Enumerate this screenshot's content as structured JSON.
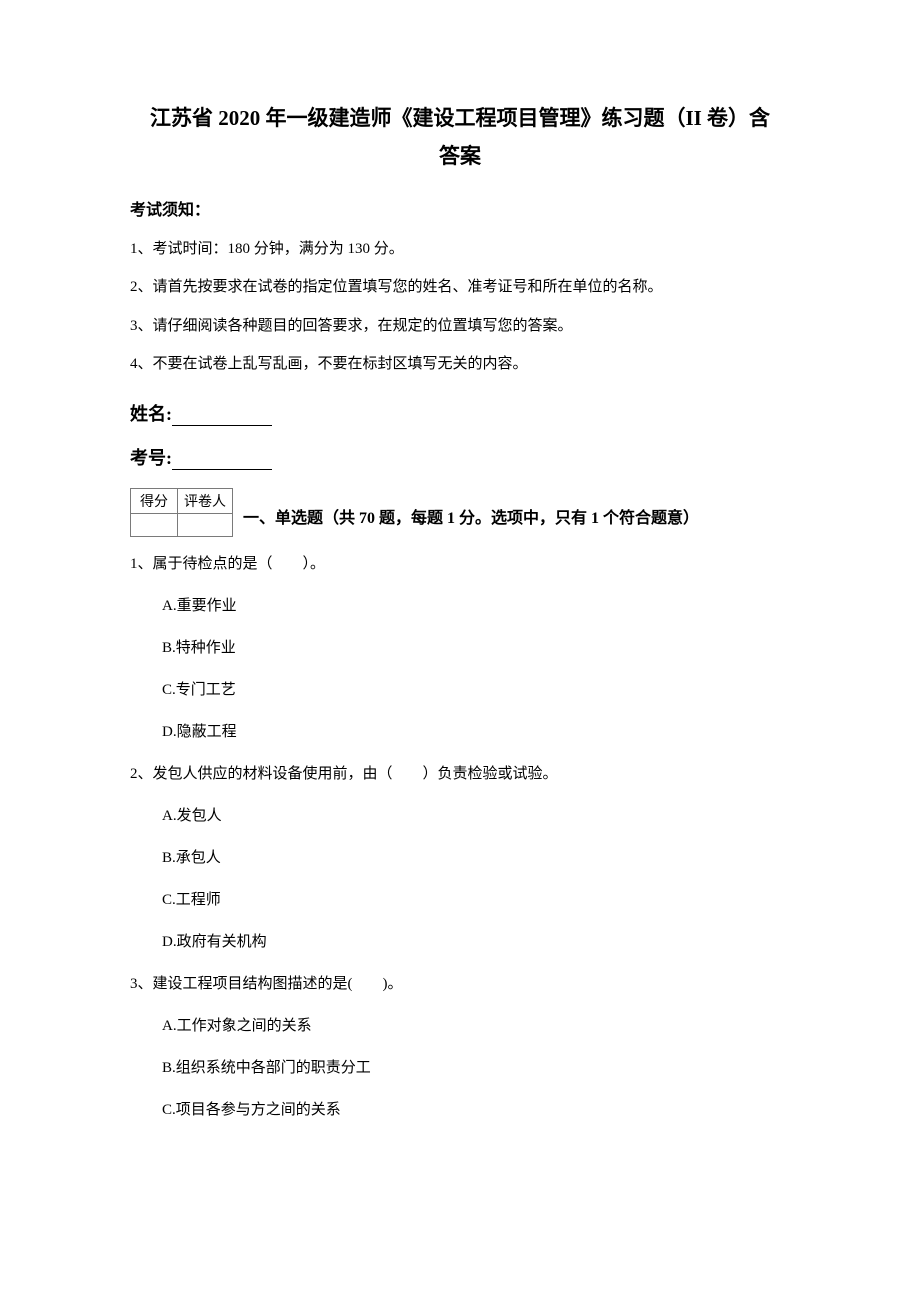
{
  "title_line1": "江苏省 2020 年一级建造师《建设工程项目管理》练习题（II 卷）含",
  "title_line2": "答案",
  "notice_heading": "考试须知：",
  "instructions": [
    "1、考试时间：180 分钟，满分为 130 分。",
    "2、请首先按要求在试卷的指定位置填写您的姓名、准考证号和所在单位的名称。",
    "3、请仔细阅读各种题目的回答要求，在规定的位置填写您的答案。",
    "4、不要在试卷上乱写乱画，不要在标封区填写无关的内容。"
  ],
  "name_label": "姓名:",
  "id_label": "考号:",
  "score_table": {
    "header_score": "得分",
    "header_grader": "评卷人"
  },
  "section_title": "一、单选题（共 70 题，每题 1 分。选项中，只有 1 个符合题意）",
  "questions": [
    {
      "text": "1、属于待检点的是（　　）。",
      "options": [
        "A.重要作业",
        "B.特种作业",
        "C.专门工艺",
        "D.隐蔽工程"
      ]
    },
    {
      "text": "2、发包人供应的材料设备使用前，由（　　）负责检验或试验。",
      "options": [
        "A.发包人",
        "B.承包人",
        "C.工程师",
        "D.政府有关机构"
      ]
    },
    {
      "text": "3、建设工程项目结构图描述的是(　　)。",
      "options": [
        "A.工作对象之间的关系",
        "B.组织系统中各部门的职责分工",
        "C.项目各参与方之间的关系"
      ]
    }
  ]
}
